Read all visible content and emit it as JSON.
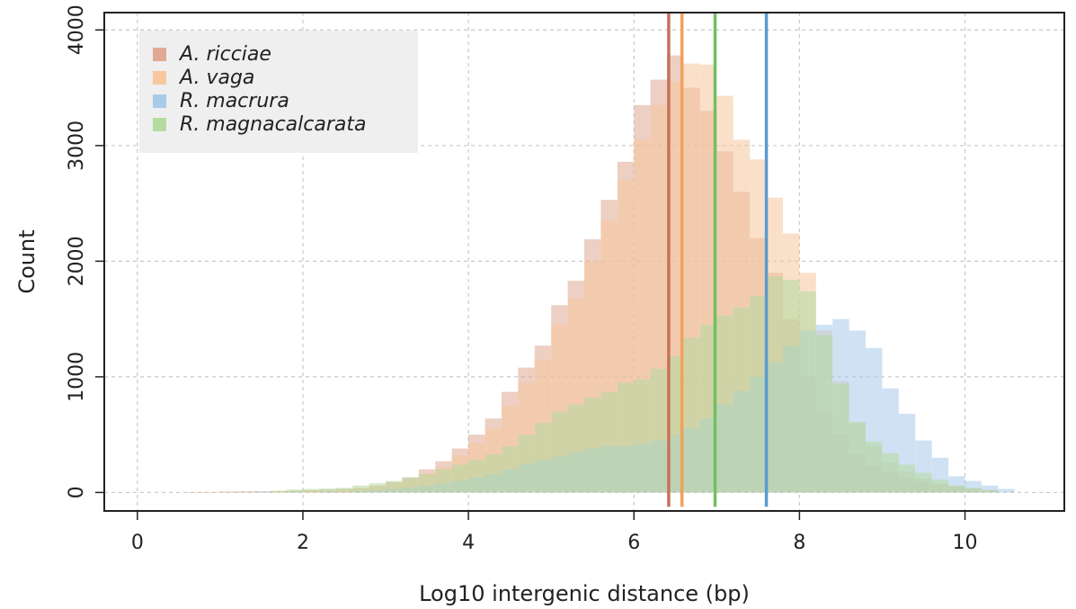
{
  "chart_data": {
    "type": "histogram",
    "xlabel": "Log10 intergenic distance (bp)",
    "ylabel": "Count",
    "xlim": [
      -0.4,
      11.2
    ],
    "ylim": [
      -160,
      4150
    ],
    "xticks": [
      "0",
      "2",
      "4",
      "6",
      "8",
      "10"
    ],
    "yticks": [
      "0",
      "1000",
      "2000",
      "3000",
      "4000"
    ],
    "grid": true,
    "legend_position": "top-left",
    "bin_width": 0.2,
    "series": [
      {
        "name": "A. ricciae",
        "color": "#c8725a",
        "fill": "#e0a995",
        "bins": [
          [
            0.6,
            5
          ],
          [
            0.8,
            5
          ],
          [
            1.0,
            8
          ],
          [
            1.2,
            10
          ],
          [
            1.4,
            10
          ],
          [
            1.6,
            12
          ],
          [
            1.8,
            15
          ],
          [
            2.0,
            20
          ],
          [
            2.2,
            25
          ],
          [
            2.4,
            30
          ],
          [
            2.6,
            40
          ],
          [
            2.8,
            60
          ],
          [
            3.0,
            90
          ],
          [
            3.2,
            130
          ],
          [
            3.4,
            200
          ],
          [
            3.6,
            270
          ],
          [
            3.8,
            380
          ],
          [
            4.0,
            500
          ],
          [
            4.2,
            640
          ],
          [
            4.4,
            870
          ],
          [
            4.6,
            1080
          ],
          [
            4.8,
            1270
          ],
          [
            5.0,
            1620
          ],
          [
            5.2,
            1830
          ],
          [
            5.4,
            2190
          ],
          [
            5.6,
            2530
          ],
          [
            5.8,
            2860
          ],
          [
            6.0,
            3350
          ],
          [
            6.2,
            3570
          ],
          [
            6.4,
            3780
          ],
          [
            6.6,
            3500
          ],
          [
            6.8,
            3300
          ],
          [
            7.0,
            2950
          ],
          [
            7.2,
            2600
          ],
          [
            7.4,
            2200
          ],
          [
            7.6,
            1900
          ],
          [
            7.8,
            1500
          ],
          [
            8.0,
            1000
          ],
          [
            8.2,
            700
          ],
          [
            8.4,
            500
          ],
          [
            8.6,
            330
          ],
          [
            8.8,
            230
          ],
          [
            9.0,
            170
          ],
          [
            9.2,
            120
          ],
          [
            9.4,
            90
          ],
          [
            9.6,
            70
          ],
          [
            9.8,
            50
          ],
          [
            10.0,
            30
          ],
          [
            10.2,
            20
          ]
        ]
      },
      {
        "name": "A. vaga",
        "color": "#f2a05a",
        "fill": "#f7c89e",
        "bins": [
          [
            0.6,
            3
          ],
          [
            0.8,
            4
          ],
          [
            1.0,
            5
          ],
          [
            1.2,
            6
          ],
          [
            1.4,
            8
          ],
          [
            1.6,
            10
          ],
          [
            1.8,
            12
          ],
          [
            2.0,
            15
          ],
          [
            2.2,
            20
          ],
          [
            2.4,
            25
          ],
          [
            2.6,
            35
          ],
          [
            2.8,
            50
          ],
          [
            3.0,
            75
          ],
          [
            3.2,
            110
          ],
          [
            3.4,
            160
          ],
          [
            3.6,
            220
          ],
          [
            3.8,
            320
          ],
          [
            4.0,
            430
          ],
          [
            4.2,
            550
          ],
          [
            4.4,
            750
          ],
          [
            4.6,
            950
          ],
          [
            4.8,
            1150
          ],
          [
            5.0,
            1450
          ],
          [
            5.2,
            1680
          ],
          [
            5.4,
            2000
          ],
          [
            5.6,
            2350
          ],
          [
            5.8,
            2700
          ],
          [
            6.0,
            3050
          ],
          [
            6.2,
            3350
          ],
          [
            6.4,
            3550
          ],
          [
            6.6,
            3710
          ],
          [
            6.8,
            3700
          ],
          [
            7.0,
            3430
          ],
          [
            7.2,
            3050
          ],
          [
            7.4,
            2880
          ],
          [
            7.6,
            2550
          ],
          [
            7.8,
            2240
          ],
          [
            8.0,
            1900
          ],
          [
            8.2,
            1400
          ],
          [
            8.4,
            960
          ],
          [
            8.6,
            600
          ],
          [
            8.8,
            400
          ],
          [
            9.0,
            260
          ],
          [
            9.2,
            180
          ],
          [
            9.4,
            120
          ],
          [
            9.6,
            80
          ],
          [
            9.8,
            55
          ],
          [
            10.0,
            35
          ],
          [
            10.2,
            20
          ]
        ]
      },
      {
        "name": "R. macrura",
        "color": "#5a9bd0",
        "fill": "#a9cbea",
        "bins": [
          [
            1.0,
            5
          ],
          [
            1.4,
            8
          ],
          [
            1.8,
            10
          ],
          [
            2.2,
            12
          ],
          [
            2.6,
            15
          ],
          [
            2.8,
            20
          ],
          [
            3.0,
            30
          ],
          [
            3.2,
            45
          ],
          [
            3.4,
            60
          ],
          [
            3.6,
            80
          ],
          [
            3.8,
            100
          ],
          [
            4.0,
            130
          ],
          [
            4.2,
            160
          ],
          [
            4.4,
            200
          ],
          [
            4.6,
            240
          ],
          [
            4.8,
            280
          ],
          [
            5.0,
            310
          ],
          [
            5.2,
            350
          ],
          [
            5.4,
            380
          ],
          [
            5.6,
            400
          ],
          [
            5.8,
            400
          ],
          [
            6.0,
            420
          ],
          [
            6.2,
            450
          ],
          [
            6.4,
            500
          ],
          [
            6.6,
            560
          ],
          [
            6.8,
            640
          ],
          [
            7.0,
            760
          ],
          [
            7.2,
            880
          ],
          [
            7.4,
            1000
          ],
          [
            7.6,
            1120
          ],
          [
            7.8,
            1270
          ],
          [
            8.0,
            1400
          ],
          [
            8.2,
            1450
          ],
          [
            8.4,
            1500
          ],
          [
            8.6,
            1400
          ],
          [
            8.8,
            1250
          ],
          [
            9.0,
            900
          ],
          [
            9.2,
            680
          ],
          [
            9.4,
            450
          ],
          [
            9.6,
            300
          ],
          [
            9.8,
            140
          ],
          [
            10.0,
            100
          ],
          [
            10.2,
            60
          ],
          [
            10.4,
            30
          ]
        ]
      },
      {
        "name": "R. magnacalcarata",
        "color": "#70c060",
        "fill": "#b5dba0",
        "bins": [
          [
            1.2,
            5
          ],
          [
            1.6,
            15
          ],
          [
            1.8,
            25
          ],
          [
            2.0,
            30
          ],
          [
            2.2,
            35
          ],
          [
            2.4,
            40
          ],
          [
            2.6,
            60
          ],
          [
            2.8,
            80
          ],
          [
            3.0,
            100
          ],
          [
            3.2,
            130
          ],
          [
            3.4,
            160
          ],
          [
            3.6,
            200
          ],
          [
            3.8,
            240
          ],
          [
            4.0,
            280
          ],
          [
            4.2,
            330
          ],
          [
            4.4,
            400
          ],
          [
            4.6,
            500
          ],
          [
            4.8,
            600
          ],
          [
            5.0,
            700
          ],
          [
            5.2,
            760
          ],
          [
            5.4,
            820
          ],
          [
            5.6,
            870
          ],
          [
            5.8,
            950
          ],
          [
            6.0,
            980
          ],
          [
            6.2,
            1070
          ],
          [
            6.4,
            1180
          ],
          [
            6.6,
            1340
          ],
          [
            6.8,
            1450
          ],
          [
            7.0,
            1530
          ],
          [
            7.2,
            1600
          ],
          [
            7.4,
            1700
          ],
          [
            7.6,
            1870
          ],
          [
            7.8,
            1840
          ],
          [
            8.0,
            1740
          ],
          [
            8.2,
            1360
          ],
          [
            8.4,
            940
          ],
          [
            8.6,
            610
          ],
          [
            8.8,
            440
          ],
          [
            9.0,
            340
          ],
          [
            9.2,
            240
          ],
          [
            9.4,
            170
          ],
          [
            9.6,
            110
          ],
          [
            9.8,
            60
          ],
          [
            10.0,
            40
          ],
          [
            10.2,
            20
          ]
        ]
      }
    ],
    "vlines": [
      {
        "x": 6.42,
        "color": "#c8725a"
      },
      {
        "x": 6.58,
        "color": "#f2a05a"
      },
      {
        "x": 6.98,
        "color": "#70c060"
      },
      {
        "x": 7.6,
        "color": "#5a9bd0"
      }
    ]
  }
}
